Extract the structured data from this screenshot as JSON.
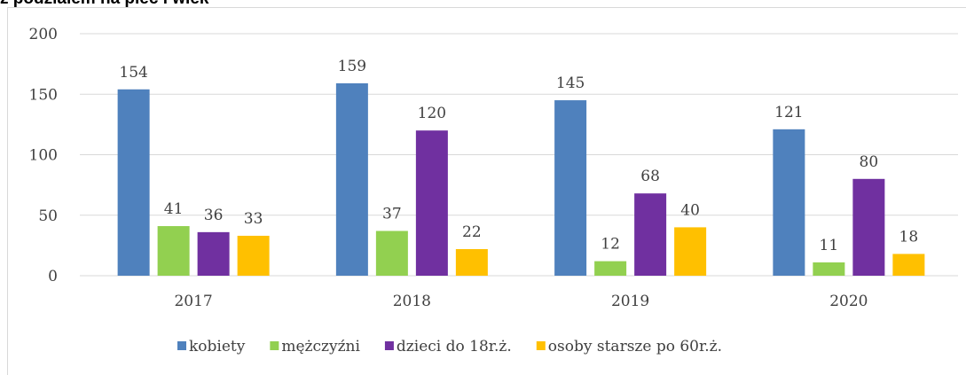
{
  "chart_data": {
    "type": "bar",
    "title": "z podziałem na płeć i wiek",
    "categories": [
      "2017",
      "2018",
      "2019",
      "2020"
    ],
    "series": [
      {
        "name": "kobiety",
        "color": "#4f81bd",
        "values": [
          154,
          159,
          145,
          121
        ]
      },
      {
        "name": "mężczyźni",
        "color": "#92d050",
        "values": [
          41,
          37,
          12,
          11
        ]
      },
      {
        "name": "dzieci do 18r.ż.",
        "color": "#7030a0",
        "values": [
          36,
          120,
          68,
          80
        ]
      },
      {
        "name": "osoby starsze po 60r.ż.",
        "color": "#ffc000",
        "values": [
          33,
          22,
          40,
          18
        ]
      }
    ],
    "ylim": [
      0,
      200
    ],
    "yticks": [
      0,
      50,
      100,
      150,
      200
    ],
    "grid": true,
    "legend": "bottom"
  }
}
